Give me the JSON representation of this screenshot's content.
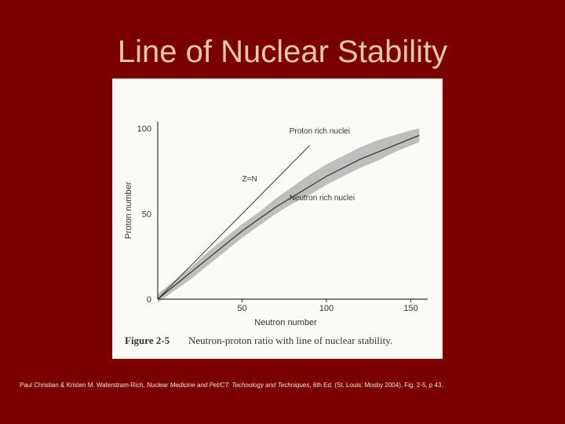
{
  "slide": {
    "title": "Line of Nuclear Stability",
    "citation": {
      "authors": "Paul Christian & Kristen M. Waterstram-Rich, ",
      "book_title": "Nuclear Medicine and Pet/CT: Technology and Techniques",
      "details": ", 6th Ed. (St. Louis:  Mosby 2004), Fig. 2-5, p 43."
    }
  },
  "chart_data": {
    "type": "line",
    "xlabel": "Neutron number",
    "ylabel": "Proton number",
    "xlim": [
      0,
      160
    ],
    "ylim": [
      0,
      104
    ],
    "x_ticks": [
      "50",
      "100",
      "150"
    ],
    "y_ticks": [
      "0",
      "50",
      "100"
    ],
    "series": [
      {
        "name": "Z=N",
        "x": [
          0,
          90
        ],
        "y": [
          0,
          90
        ]
      },
      {
        "name": "",
        "x": [
          0,
          10,
          20,
          30,
          40,
          50,
          60,
          70,
          80,
          90,
          100,
          110,
          120,
          130,
          140,
          150,
          155
        ],
        "y": [
          0,
          8,
          16,
          24,
          32,
          40,
          47,
          54,
          60,
          66,
          72,
          77,
          82,
          86,
          90,
          94,
          96
        ]
      }
    ],
    "band": {
      "x": [
        0,
        10,
        20,
        30,
        40,
        50,
        60,
        70,
        80,
        90,
        100,
        110,
        120,
        130,
        140,
        150,
        155
      ],
      "upper": [
        3,
        11,
        19,
        28,
        36,
        44,
        51,
        59,
        66,
        73,
        79,
        84,
        89,
        93,
        96,
        99,
        100
      ],
      "lower": [
        -2,
        5,
        12,
        20,
        28,
        36,
        43,
        50,
        56,
        61,
        67,
        72,
        77,
        81,
        86,
        90,
        92
      ]
    },
    "annotations": [
      {
        "text": "Proton rich nuclei",
        "x": 78,
        "y": 97
      },
      {
        "text": "Z=N",
        "x": 50,
        "y": 69
      },
      {
        "text": "Neutron rich nuclei",
        "x": 78,
        "y": 58
      }
    ],
    "figure_label": "Figure 2-5",
    "caption": "Neutron-proton ratio with line of nuclear stability."
  }
}
